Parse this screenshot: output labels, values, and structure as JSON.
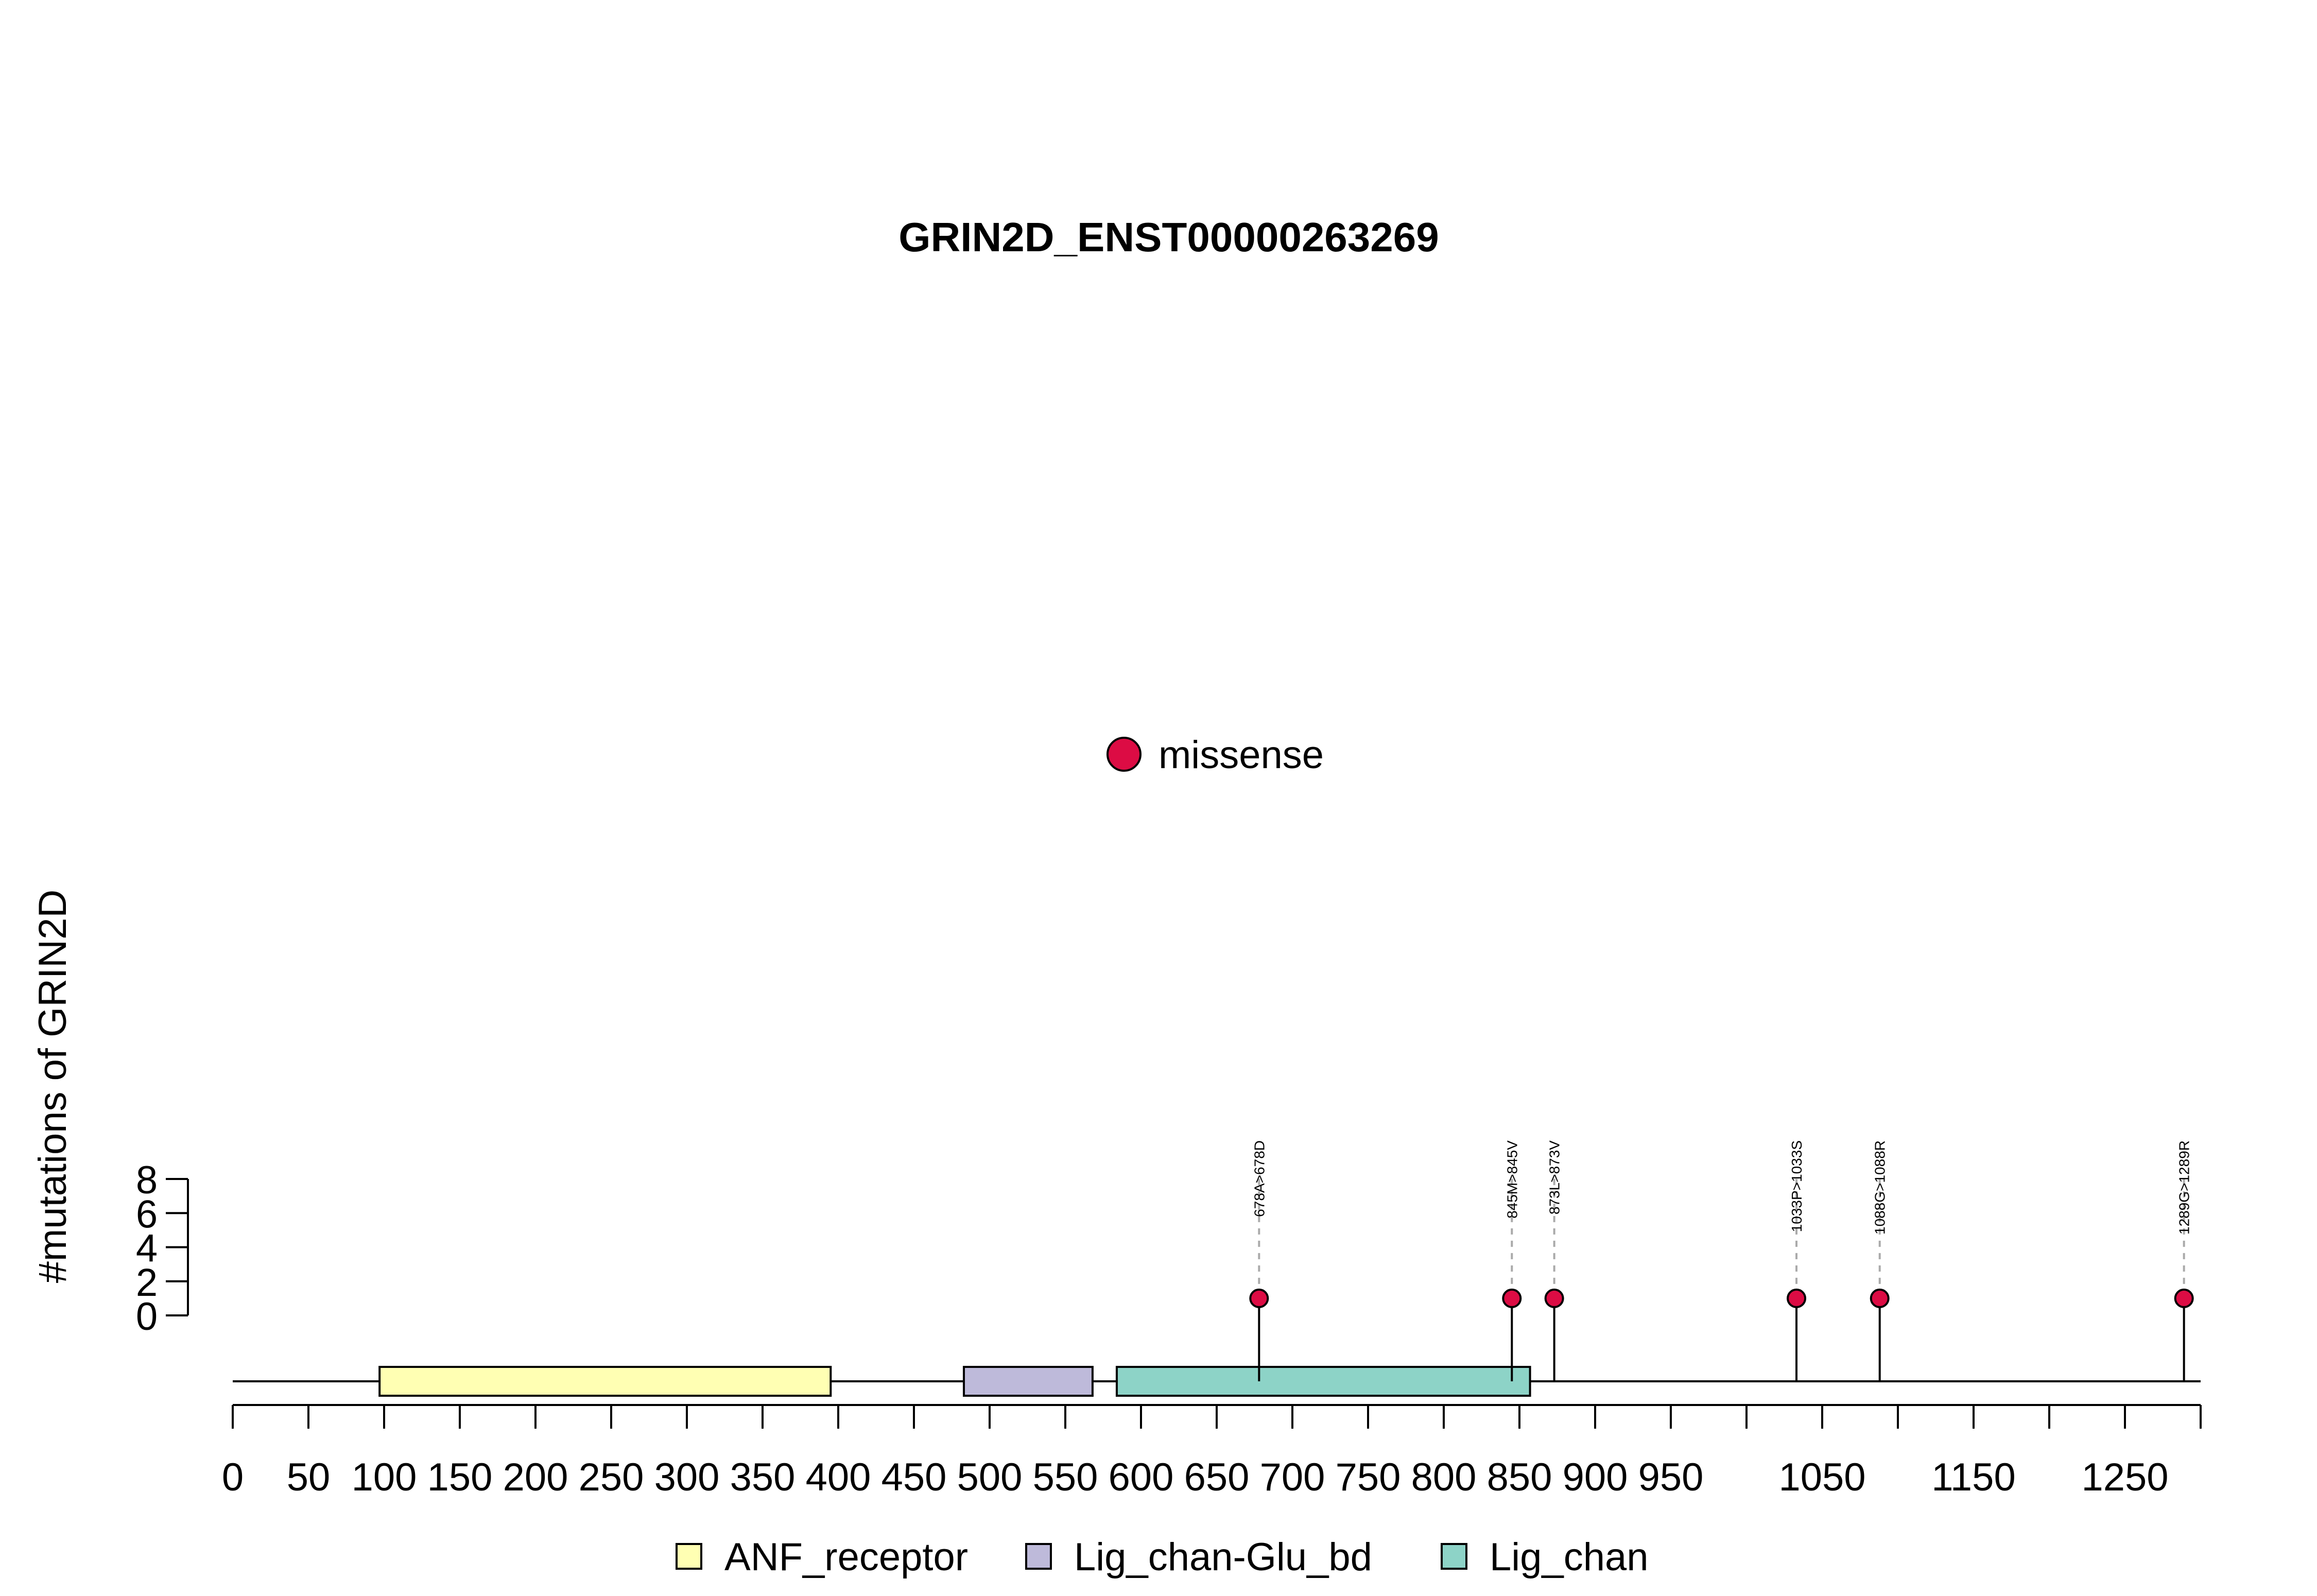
{
  "chart_data": {
    "type": "lollipop",
    "title": "GRIN2D_ENST00000263269",
    "ylabel": "#mutations of GRIN2D",
    "xlabel": "",
    "protein_length": 1300,
    "xlim": [
      0,
      1300
    ],
    "ylim": [
      0,
      8
    ],
    "y_ticks": [
      0,
      2,
      4,
      6,
      8
    ],
    "x_ticks": [
      0,
      50,
      100,
      150,
      200,
      250,
      300,
      350,
      400,
      450,
      500,
      550,
      600,
      650,
      700,
      750,
      800,
      850,
      900,
      950,
      1000,
      1050,
      1100,
      1150,
      1200,
      1250,
      1300
    ],
    "x_tick_labels": [
      "0",
      "50",
      "100",
      "150",
      "200",
      "250",
      "300",
      "350",
      "400",
      "450",
      "500",
      "550",
      "600",
      "650",
      "700",
      "750",
      "800",
      "850",
      "900",
      "950",
      "",
      "1050",
      "",
      "1150",
      "",
      "1250",
      ""
    ],
    "mutation_legend": [
      {
        "label": "missense",
        "color": "#DC0C44"
      }
    ],
    "mutations": [
      {
        "position": 678,
        "label": "678A>678D",
        "count": 1,
        "type": "missense"
      },
      {
        "position": 845,
        "label": "845M>845V",
        "count": 1,
        "type": "missense"
      },
      {
        "position": 873,
        "label": "873L>873V",
        "count": 1,
        "type": "missense"
      },
      {
        "position": 1033,
        "label": "1033P>1033S",
        "count": 1,
        "type": "missense"
      },
      {
        "position": 1088,
        "label": "1088G>1088R",
        "count": 1,
        "type": "missense"
      },
      {
        "position": 1289,
        "label": "1289G>1289R",
        "count": 1,
        "type": "missense"
      }
    ],
    "domains": [
      {
        "name": "ANF_receptor",
        "start": 97,
        "end": 395,
        "color": "#FFFFB3"
      },
      {
        "name": "Lig_chan-Glu_bd",
        "start": 483,
        "end": 568,
        "color": "#BEBADA"
      },
      {
        "name": "Lig_chan",
        "start": 584,
        "end": 857,
        "color": "#8DD3C7"
      }
    ]
  }
}
